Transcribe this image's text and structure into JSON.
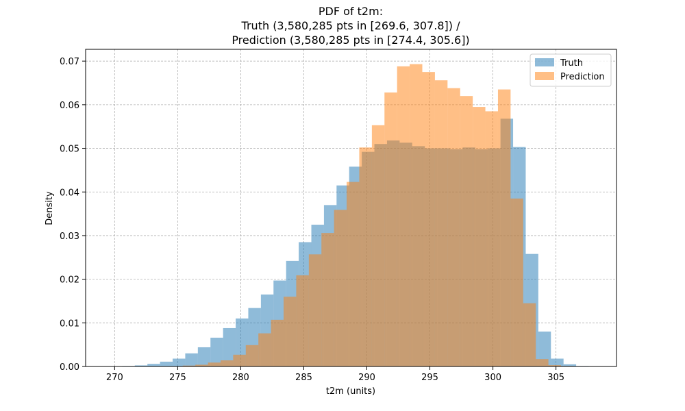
{
  "chart_data": {
    "type": "bar",
    "title_lines": [
      "PDF of t2m:",
      "Truth (3,580,285 pts in [269.6, 307.8]) /",
      "Prediction (3,580,285 pts in [274.4, 305.6])"
    ],
    "xlabel": "t2m (units)",
    "ylabel": "Density",
    "xlim": [
      267.7,
      309.8
    ],
    "ylim": [
      0.0,
      0.0727
    ],
    "xticks": [
      270,
      275,
      280,
      285,
      290,
      295,
      300,
      305
    ],
    "yticks": [
      0.0,
      0.01,
      0.02,
      0.03,
      0.04,
      0.05,
      0.06,
      0.07
    ],
    "ytick_labels": [
      "0.00",
      "0.01",
      "0.02",
      "0.03",
      "0.04",
      "0.05",
      "0.06",
      "0.07"
    ],
    "grid": true,
    "legend_position": "top-right",
    "series": [
      {
        "name": "Truth",
        "color": "#1f77b4",
        "alpha": 0.5,
        "bin_start": 269.6,
        "bin_width": 1.0,
        "values": [
          2e-05,
          0.0001,
          0.00025,
          0.0006,
          0.0011,
          0.0018,
          0.003,
          0.0044,
          0.0066,
          0.0088,
          0.011,
          0.0134,
          0.0165,
          0.0197,
          0.0242,
          0.0285,
          0.0325,
          0.037,
          0.0415,
          0.0458,
          0.0492,
          0.051,
          0.0518,
          0.0513,
          0.0505,
          0.05,
          0.05,
          0.0498,
          0.0502,
          0.0498,
          0.05,
          0.0568,
          0.0503,
          0.0258,
          0.008,
          0.0018,
          0.0005,
          0.0001
        ]
      },
      {
        "name": "Prediction",
        "color": "#ff7f0e",
        "alpha": 0.5,
        "bin_start": 274.4,
        "bin_width": 1.0,
        "values": [
          5e-05,
          0.0002,
          0.0004,
          0.0009,
          0.0014,
          0.0027,
          0.0049,
          0.0076,
          0.0107,
          0.016,
          0.0209,
          0.0257,
          0.0306,
          0.0359,
          0.0423,
          0.0502,
          0.0553,
          0.0628,
          0.0688,
          0.0693,
          0.0675,
          0.0656,
          0.0638,
          0.062,
          0.0595,
          0.0585,
          0.0635,
          0.0385,
          0.0145,
          0.0017,
          0.0003,
          0.0001
        ]
      }
    ]
  }
}
